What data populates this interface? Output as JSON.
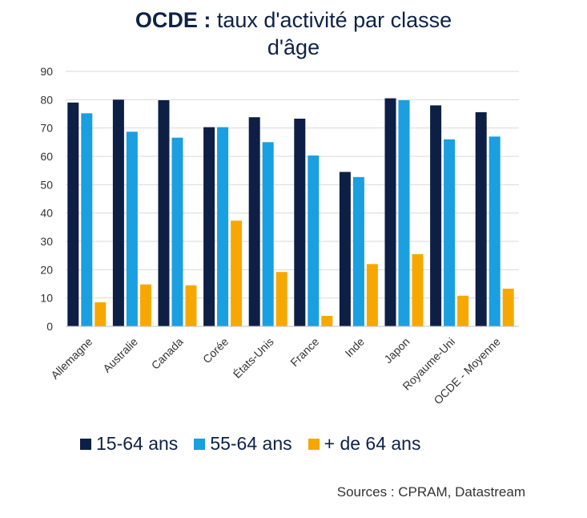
{
  "title_bold": "OCDE :",
  "title_line1_rest": " taux d'activité par classe",
  "title_line2": "d'âge",
  "source": "Sources : CPRAM, Datastream",
  "colors": {
    "s1": "#0d1f45",
    "s2": "#1a9fe0",
    "s3": "#f7a800",
    "grid": "#d9d9d9"
  },
  "chart_data": {
    "type": "bar",
    "title": "OCDE : taux d'activité par classe d'âge",
    "categories": [
      "Allemagne",
      "Australie",
      "Canada",
      "Corée",
      "États-Unis",
      "France",
      "Inde",
      "Japon",
      "Royaume-Uni",
      "OCDE - Moyenne"
    ],
    "series": [
      {
        "name": "15-64 ans",
        "values": [
          79,
          80,
          79.8,
          70.3,
          73.8,
          73.3,
          54.5,
          80.5,
          78,
          75.6
        ]
      },
      {
        "name": "55-64 ans",
        "values": [
          75.2,
          68.7,
          66.6,
          70.3,
          65,
          60.3,
          52.7,
          79.8,
          66,
          67
        ]
      },
      {
        "name": "+ de 64 ans",
        "values": [
          8.5,
          14.8,
          14.5,
          37.3,
          19.2,
          3.7,
          22,
          25.5,
          10.8,
          13.3
        ]
      }
    ],
    "yticks": [
      0,
      10,
      20,
      30,
      40,
      50,
      60,
      70,
      80,
      90
    ],
    "ylim": [
      0,
      90
    ],
    "grid": true,
    "legend_position": "bottom"
  }
}
